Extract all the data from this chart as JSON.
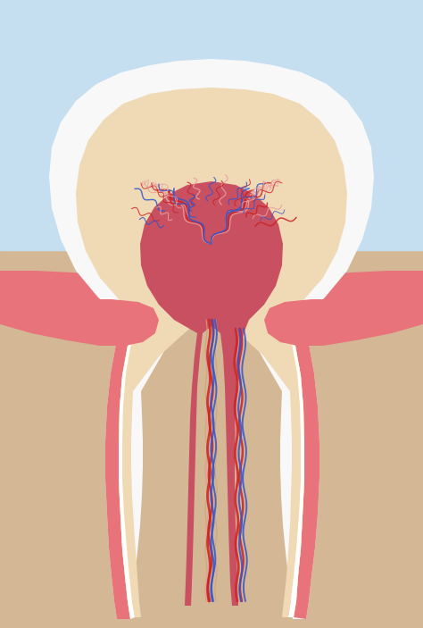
{
  "bg_blue": "#c5dff0",
  "bg_tan": "#d4b896",
  "gum_color": "#e8737a",
  "enamel_color": "#f8f8f8",
  "dentin_color": "#f0d9b5",
  "cementum_yellow": "#f0cc55",
  "cementum_white": "#ffffff",
  "pulp_color": "#c85060",
  "pulp_canal_color": "#c85060",
  "perio_color": "#e8737a",
  "nerve_red": "#cc2222",
  "nerve_blue": "#3355cc",
  "nerve_light": "#e8a0a0",
  "nerve_tan": "#d4a070",
  "figsize": [
    4.74,
    7.03
  ],
  "dpi": 100
}
